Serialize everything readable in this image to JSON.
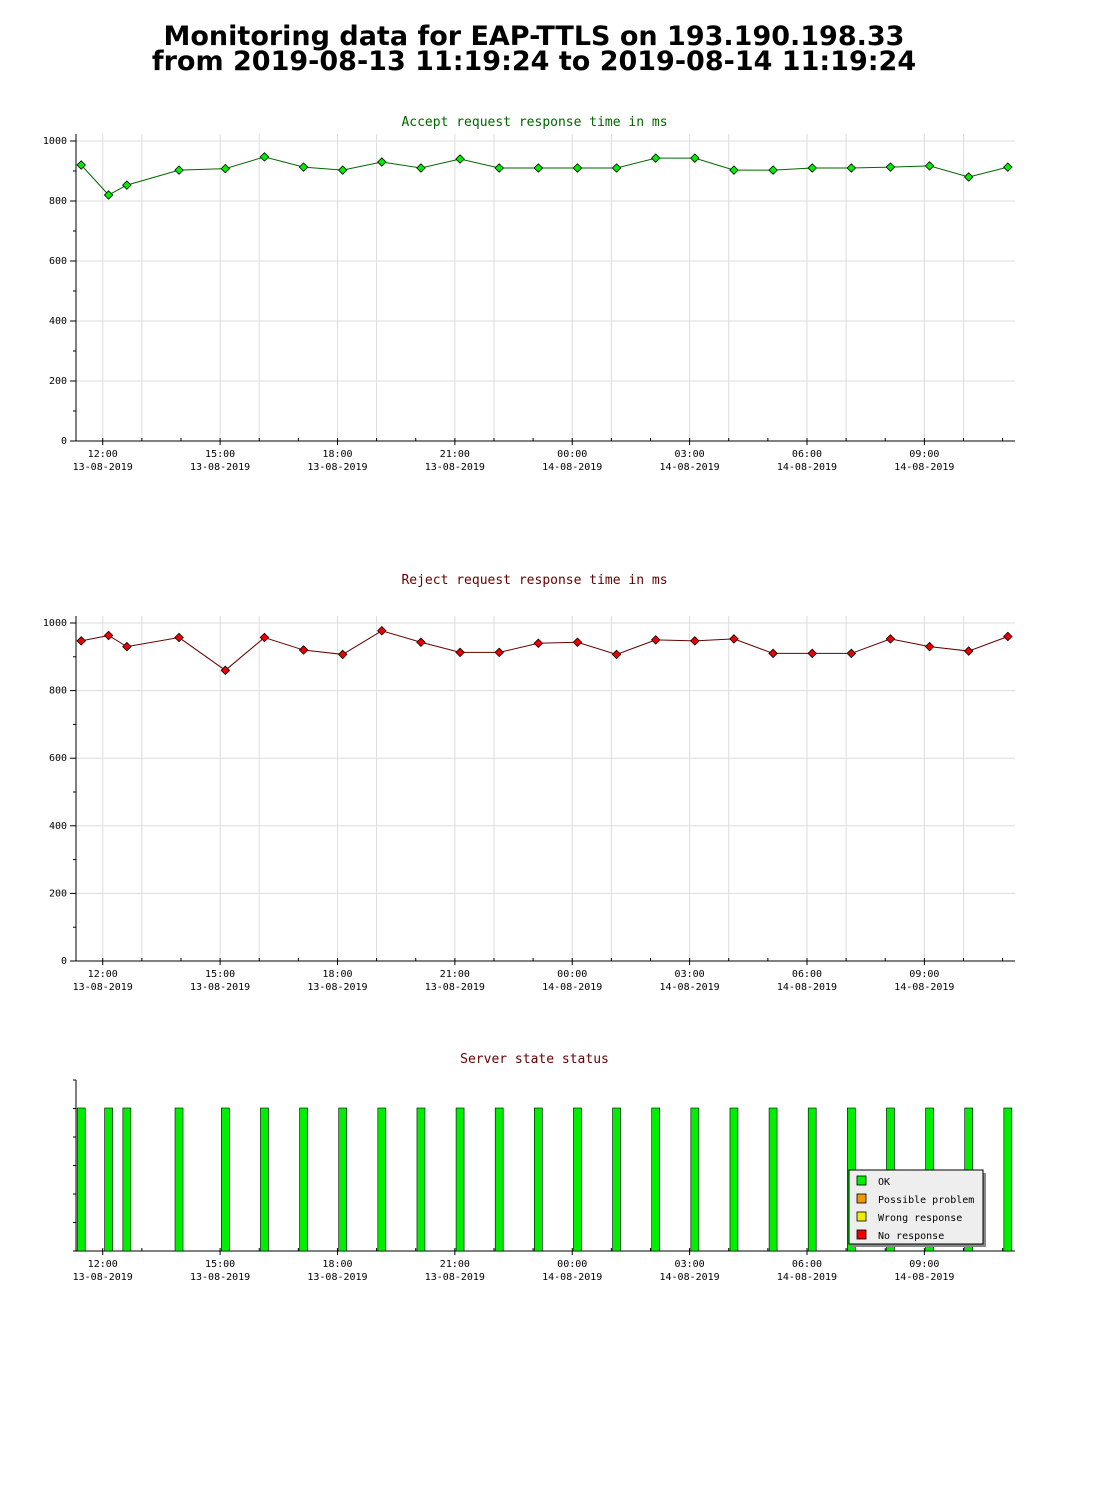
{
  "page": {
    "title_line1": "Monitoring data for EAP-TTLS on 193.190.198.33",
    "title_line2": "from 2019-08-13 11:19:24 to 2019-08-14 11:19:24"
  },
  "chart_data": [
    {
      "type": "line",
      "title": "Accept request response time in ms",
      "title_color": "#006600",
      "marker_color": "#00ee00",
      "line_color": "#006600",
      "ylim": [
        0,
        1000
      ],
      "yticks": [
        0,
        200,
        400,
        600,
        800,
        1000
      ],
      "grid": true,
      "x_start": "2019-08-13 11:19",
      "x_end": "2019-08-14 11:19",
      "xtick_labels": [
        {
          "time": "12:00",
          "date": "13-08-2019"
        },
        {
          "time": "15:00",
          "date": "13-08-2019"
        },
        {
          "time": "18:00",
          "date": "13-08-2019"
        },
        {
          "time": "21:00",
          "date": "13-08-2019"
        },
        {
          "time": "00:00",
          "date": "14-08-2019"
        },
        {
          "time": "03:00",
          "date": "14-08-2019"
        },
        {
          "time": "06:00",
          "date": "14-08-2019"
        },
        {
          "time": "09:00",
          "date": "14-08-2019"
        }
      ],
      "points": [
        {
          "x": "2019-08-13 11:27",
          "y": 920
        },
        {
          "x": "2019-08-13 12:09",
          "y": 820
        },
        {
          "x": "2019-08-13 12:37",
          "y": 853
        },
        {
          "x": "2019-08-13 13:57",
          "y": 903
        },
        {
          "x": "2019-08-13 15:08",
          "y": 908
        },
        {
          "x": "2019-08-13 16:08",
          "y": 947
        },
        {
          "x": "2019-08-13 17:08",
          "y": 913
        },
        {
          "x": "2019-08-13 18:08",
          "y": 903
        },
        {
          "x": "2019-08-13 19:08",
          "y": 930
        },
        {
          "x": "2019-08-13 20:08",
          "y": 910
        },
        {
          "x": "2019-08-13 21:08",
          "y": 940
        },
        {
          "x": "2019-08-13 22:08",
          "y": 910
        },
        {
          "x": "2019-08-13 23:08",
          "y": 910
        },
        {
          "x": "2019-08-14 00:08",
          "y": 910
        },
        {
          "x": "2019-08-14 01:08",
          "y": 910
        },
        {
          "x": "2019-08-14 02:08",
          "y": 943
        },
        {
          "x": "2019-08-14 03:08",
          "y": 943
        },
        {
          "x": "2019-08-14 04:08",
          "y": 903
        },
        {
          "x": "2019-08-14 05:08",
          "y": 903
        },
        {
          "x": "2019-08-14 06:08",
          "y": 910
        },
        {
          "x": "2019-08-14 07:08",
          "y": 910
        },
        {
          "x": "2019-08-14 08:08",
          "y": 913
        },
        {
          "x": "2019-08-14 09:08",
          "y": 917
        },
        {
          "x": "2019-08-14 10:08",
          "y": 880
        },
        {
          "x": "2019-08-14 11:08",
          "y": 913
        }
      ]
    },
    {
      "type": "line",
      "title": "Reject request response time in ms",
      "title_color": "#660000",
      "marker_color": "#ee0000",
      "line_color": "#660000",
      "ylim": [
        0,
        1000
      ],
      "yticks": [
        0,
        200,
        400,
        600,
        800,
        1000
      ],
      "grid": true,
      "x_start": "2019-08-13 11:19",
      "x_end": "2019-08-14 11:19",
      "xtick_labels": [
        {
          "time": "12:00",
          "date": "13-08-2019"
        },
        {
          "time": "15:00",
          "date": "13-08-2019"
        },
        {
          "time": "18:00",
          "date": "13-08-2019"
        },
        {
          "time": "21:00",
          "date": "13-08-2019"
        },
        {
          "time": "00:00",
          "date": "14-08-2019"
        },
        {
          "time": "03:00",
          "date": "14-08-2019"
        },
        {
          "time": "06:00",
          "date": "14-08-2019"
        },
        {
          "time": "09:00",
          "date": "14-08-2019"
        }
      ],
      "points": [
        {
          "x": "2019-08-13 11:27",
          "y": 947
        },
        {
          "x": "2019-08-13 12:09",
          "y": 963
        },
        {
          "x": "2019-08-13 12:37",
          "y": 930
        },
        {
          "x": "2019-08-13 13:57",
          "y": 957
        },
        {
          "x": "2019-08-13 15:08",
          "y": 860
        },
        {
          "x": "2019-08-13 16:08",
          "y": 957
        },
        {
          "x": "2019-08-13 17:08",
          "y": 920
        },
        {
          "x": "2019-08-13 18:08",
          "y": 907
        },
        {
          "x": "2019-08-13 19:08",
          "y": 977
        },
        {
          "x": "2019-08-13 20:08",
          "y": 943
        },
        {
          "x": "2019-08-13 21:08",
          "y": 913
        },
        {
          "x": "2019-08-13 22:08",
          "y": 913
        },
        {
          "x": "2019-08-13 23:08",
          "y": 940
        },
        {
          "x": "2019-08-14 00:08",
          "y": 943
        },
        {
          "x": "2019-08-14 01:08",
          "y": 907
        },
        {
          "x": "2019-08-14 02:08",
          "y": 950
        },
        {
          "x": "2019-08-14 03:08",
          "y": 947
        },
        {
          "x": "2019-08-14 04:08",
          "y": 953
        },
        {
          "x": "2019-08-14 05:08",
          "y": 910
        },
        {
          "x": "2019-08-14 06:08",
          "y": 910
        },
        {
          "x": "2019-08-14 07:08",
          "y": 910
        },
        {
          "x": "2019-08-14 08:08",
          "y": 953
        },
        {
          "x": "2019-08-14 09:08",
          "y": 930
        },
        {
          "x": "2019-08-14 10:08",
          "y": 917
        },
        {
          "x": "2019-08-14 11:08",
          "y": 960
        }
      ]
    },
    {
      "type": "bar",
      "title": "Server state status",
      "title_color": "#660000",
      "grid": false,
      "x_start": "2019-08-13 11:19",
      "x_end": "2019-08-14 11:19",
      "xtick_labels": [
        {
          "time": "12:00",
          "date": "13-08-2019"
        },
        {
          "time": "15:00",
          "date": "13-08-2019"
        },
        {
          "time": "18:00",
          "date": "13-08-2019"
        },
        {
          "time": "21:00",
          "date": "13-08-2019"
        },
        {
          "time": "00:00",
          "date": "14-08-2019"
        },
        {
          "time": "03:00",
          "date": "14-08-2019"
        },
        {
          "time": "06:00",
          "date": "14-08-2019"
        },
        {
          "time": "09:00",
          "date": "14-08-2019"
        }
      ],
      "legend_placement": "bottom-right",
      "legend": [
        {
          "label": "OK",
          "color": "#00ee00"
        },
        {
          "label": "Possible problem",
          "color": "#ee9900"
        },
        {
          "label": "Wrong response",
          "color": "#eeee00"
        },
        {
          "label": "No response",
          "color": "#ee0000"
        }
      ],
      "status_points": [
        {
          "x": "2019-08-13 11:27",
          "state": "OK"
        },
        {
          "x": "2019-08-13 12:09",
          "state": "OK"
        },
        {
          "x": "2019-08-13 12:37",
          "state": "OK"
        },
        {
          "x": "2019-08-13 13:57",
          "state": "OK"
        },
        {
          "x": "2019-08-13 15:08",
          "state": "OK"
        },
        {
          "x": "2019-08-13 16:08",
          "state": "OK"
        },
        {
          "x": "2019-08-13 17:08",
          "state": "OK"
        },
        {
          "x": "2019-08-13 18:08",
          "state": "OK"
        },
        {
          "x": "2019-08-13 19:08",
          "state": "OK"
        },
        {
          "x": "2019-08-13 20:08",
          "state": "OK"
        },
        {
          "x": "2019-08-13 21:08",
          "state": "OK"
        },
        {
          "x": "2019-08-13 22:08",
          "state": "OK"
        },
        {
          "x": "2019-08-13 23:08",
          "state": "OK"
        },
        {
          "x": "2019-08-14 00:08",
          "state": "OK"
        },
        {
          "x": "2019-08-14 01:08",
          "state": "OK"
        },
        {
          "x": "2019-08-14 02:08",
          "state": "OK"
        },
        {
          "x": "2019-08-14 03:08",
          "state": "OK"
        },
        {
          "x": "2019-08-14 04:08",
          "state": "OK"
        },
        {
          "x": "2019-08-14 05:08",
          "state": "OK"
        },
        {
          "x": "2019-08-14 06:08",
          "state": "OK"
        },
        {
          "x": "2019-08-14 07:08",
          "state": "OK"
        },
        {
          "x": "2019-08-14 08:08",
          "state": "OK"
        },
        {
          "x": "2019-08-14 09:08",
          "state": "OK"
        },
        {
          "x": "2019-08-14 10:08",
          "state": "OK"
        },
        {
          "x": "2019-08-14 11:08",
          "state": "OK"
        }
      ]
    }
  ]
}
